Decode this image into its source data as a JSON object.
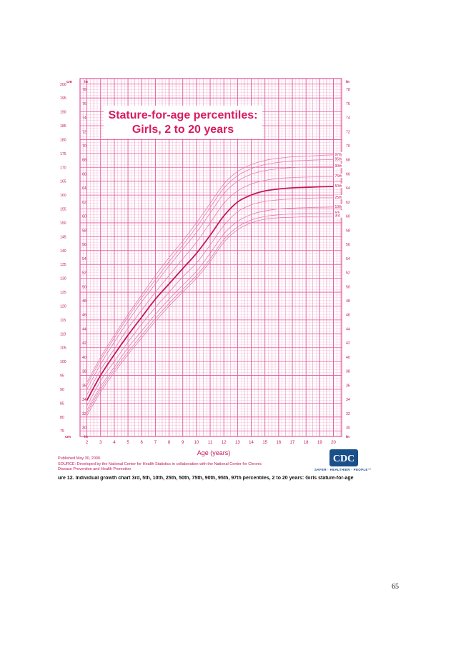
{
  "chart_data": {
    "type": "line",
    "title": "Stature-for-age percentiles:",
    "subtitle": "Girls, 2 to 20 years",
    "xlabel": "Age (years)",
    "ylabel_left": "cm",
    "ylabel_left_alt": "in",
    "ylabel_right": "in",
    "xlim": [
      1.5,
      20.6
    ],
    "ylim_cm": [
      73,
      202
    ],
    "x_ticks": [
      2,
      3,
      4,
      5,
      6,
      7,
      8,
      9,
      10,
      11,
      12,
      13,
      14,
      15,
      16,
      17,
      18,
      19,
      20
    ],
    "cm_ticks": [
      75,
      80,
      85,
      90,
      95,
      100,
      105,
      110,
      115,
      120,
      125,
      130,
      135,
      140,
      145,
      150,
      155,
      160,
      165,
      170,
      175,
      180,
      185,
      190,
      195,
      200
    ],
    "in_ticks": [
      30,
      32,
      34,
      36,
      38,
      40,
      42,
      44,
      46,
      48,
      50,
      52,
      54,
      56,
      58,
      60,
      62,
      64,
      66,
      68,
      70,
      72,
      74,
      76,
      78
    ],
    "grid": true,
    "x": [
      2,
      3,
      4,
      5,
      6,
      7,
      8,
      9,
      10,
      11,
      12,
      13,
      14,
      15,
      16,
      17,
      18,
      19,
      20
    ],
    "series": [
      {
        "name": "97th",
        "values": [
          92.5,
          101.5,
          109.5,
          117,
          124,
          131,
          137.5,
          143.5,
          150,
          157,
          164,
          168.5,
          171,
          172.5,
          173.3,
          173.8,
          174,
          174.3,
          174.5
        ]
      },
      {
        "name": "95th",
        "values": [
          91.5,
          100.5,
          108.5,
          116,
          123,
          129.5,
          136,
          142,
          148.5,
          155.5,
          162.5,
          167,
          169.5,
          171,
          171.8,
          172.3,
          172.5,
          172.7,
          172.8
        ]
      },
      {
        "name": "90th",
        "values": [
          90,
          99,
          107,
          114.5,
          121.5,
          128,
          134.5,
          140.5,
          146.5,
          153.5,
          160.5,
          165,
          167.5,
          168.8,
          169.5,
          169.9,
          170.1,
          170.2,
          170.3
        ]
      },
      {
        "name": "75th",
        "values": [
          88,
          97,
          104.5,
          112,
          118.5,
          125,
          131,
          137,
          143,
          150,
          157,
          161.5,
          164,
          165.3,
          166,
          166.3,
          166.5,
          166.6,
          166.7
        ]
      },
      {
        "name": "50th",
        "values": [
          86,
          95,
          102.5,
          109.5,
          116,
          122.5,
          128,
          133.5,
          139,
          145.5,
          152.5,
          157.5,
          160,
          161.5,
          162.2,
          162.6,
          162.8,
          163,
          163.1
        ]
      },
      {
        "name": "25th",
        "values": [
          84,
          93,
          100,
          107,
          113.5,
          119.5,
          125,
          130.5,
          135.5,
          142,
          149,
          154,
          156.5,
          157.7,
          158.3,
          158.6,
          158.8,
          159,
          159
        ]
      },
      {
        "name": "10th",
        "values": [
          82.5,
          91,
          98,
          105,
          111,
          117,
          122.5,
          127.5,
          132.5,
          139,
          146,
          150.5,
          153,
          154.3,
          155,
          155.3,
          155.5,
          155.6,
          155.7
        ]
      },
      {
        "name": "5th",
        "values": [
          81.5,
          90,
          97,
          103.5,
          109.5,
          115.5,
          121,
          126,
          131,
          137,
          144,
          148.5,
          151,
          152.3,
          152.9,
          153.2,
          153.4,
          153.5,
          153.5
        ]
      },
      {
        "name": "3rd",
        "values": [
          80.5,
          89,
          96,
          102.5,
          108.5,
          114.5,
          120,
          125,
          130,
          136,
          143,
          147.5,
          150,
          151.3,
          151.8,
          152,
          152.2,
          152.3,
          152.4
        ]
      }
    ]
  },
  "footer": {
    "published": "Published May 30, 2000.",
    "source": "SOURCE: Developed by the National Center for Health Statistics in collaboration with the National Center for Chronic Disease Prevention and Health Promotion",
    "caption": "ure 12. Individual growth chart 3rd, 5th, 10th, 25th, 50th, 75th, 90th, 95th, 97th percentiles, 2 to 20 years: Girls stature-for-age",
    "page_number": "65",
    "logo_text": "CDC",
    "logo_tagline": "SAFER · HEALTHIER · PEOPLE™"
  },
  "colors": {
    "grid": "#e0569a",
    "curve": "#e17fb0",
    "median": "#c2185b",
    "title": "#d81b60"
  }
}
